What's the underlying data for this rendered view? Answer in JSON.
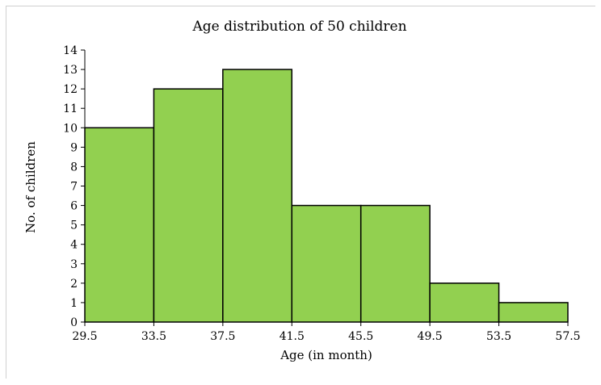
{
  "chart_data": {
    "type": "bar",
    "title": "Age distribution of 50 children",
    "xlabel": "Age (in month)",
    "ylabel": "No. of children",
    "bin_edges": [
      29.5,
      33.5,
      37.5,
      41.5,
      45.5,
      49.5,
      53.5,
      57.5
    ],
    "x_tick_labels": [
      "29.5",
      "33.5",
      "37.5",
      "41.5",
      "45.5",
      "49.5",
      "53.5",
      "57.5"
    ],
    "values": [
      10,
      12,
      13,
      6,
      6,
      2,
      1
    ],
    "ylim": [
      0,
      14
    ],
    "y_ticks": [
      0,
      1,
      2,
      3,
      4,
      5,
      6,
      7,
      8,
      9,
      10,
      11,
      12,
      13,
      14
    ],
    "grid": false,
    "bar_color": "#92d050",
    "bar_edge_color": "#000000"
  }
}
